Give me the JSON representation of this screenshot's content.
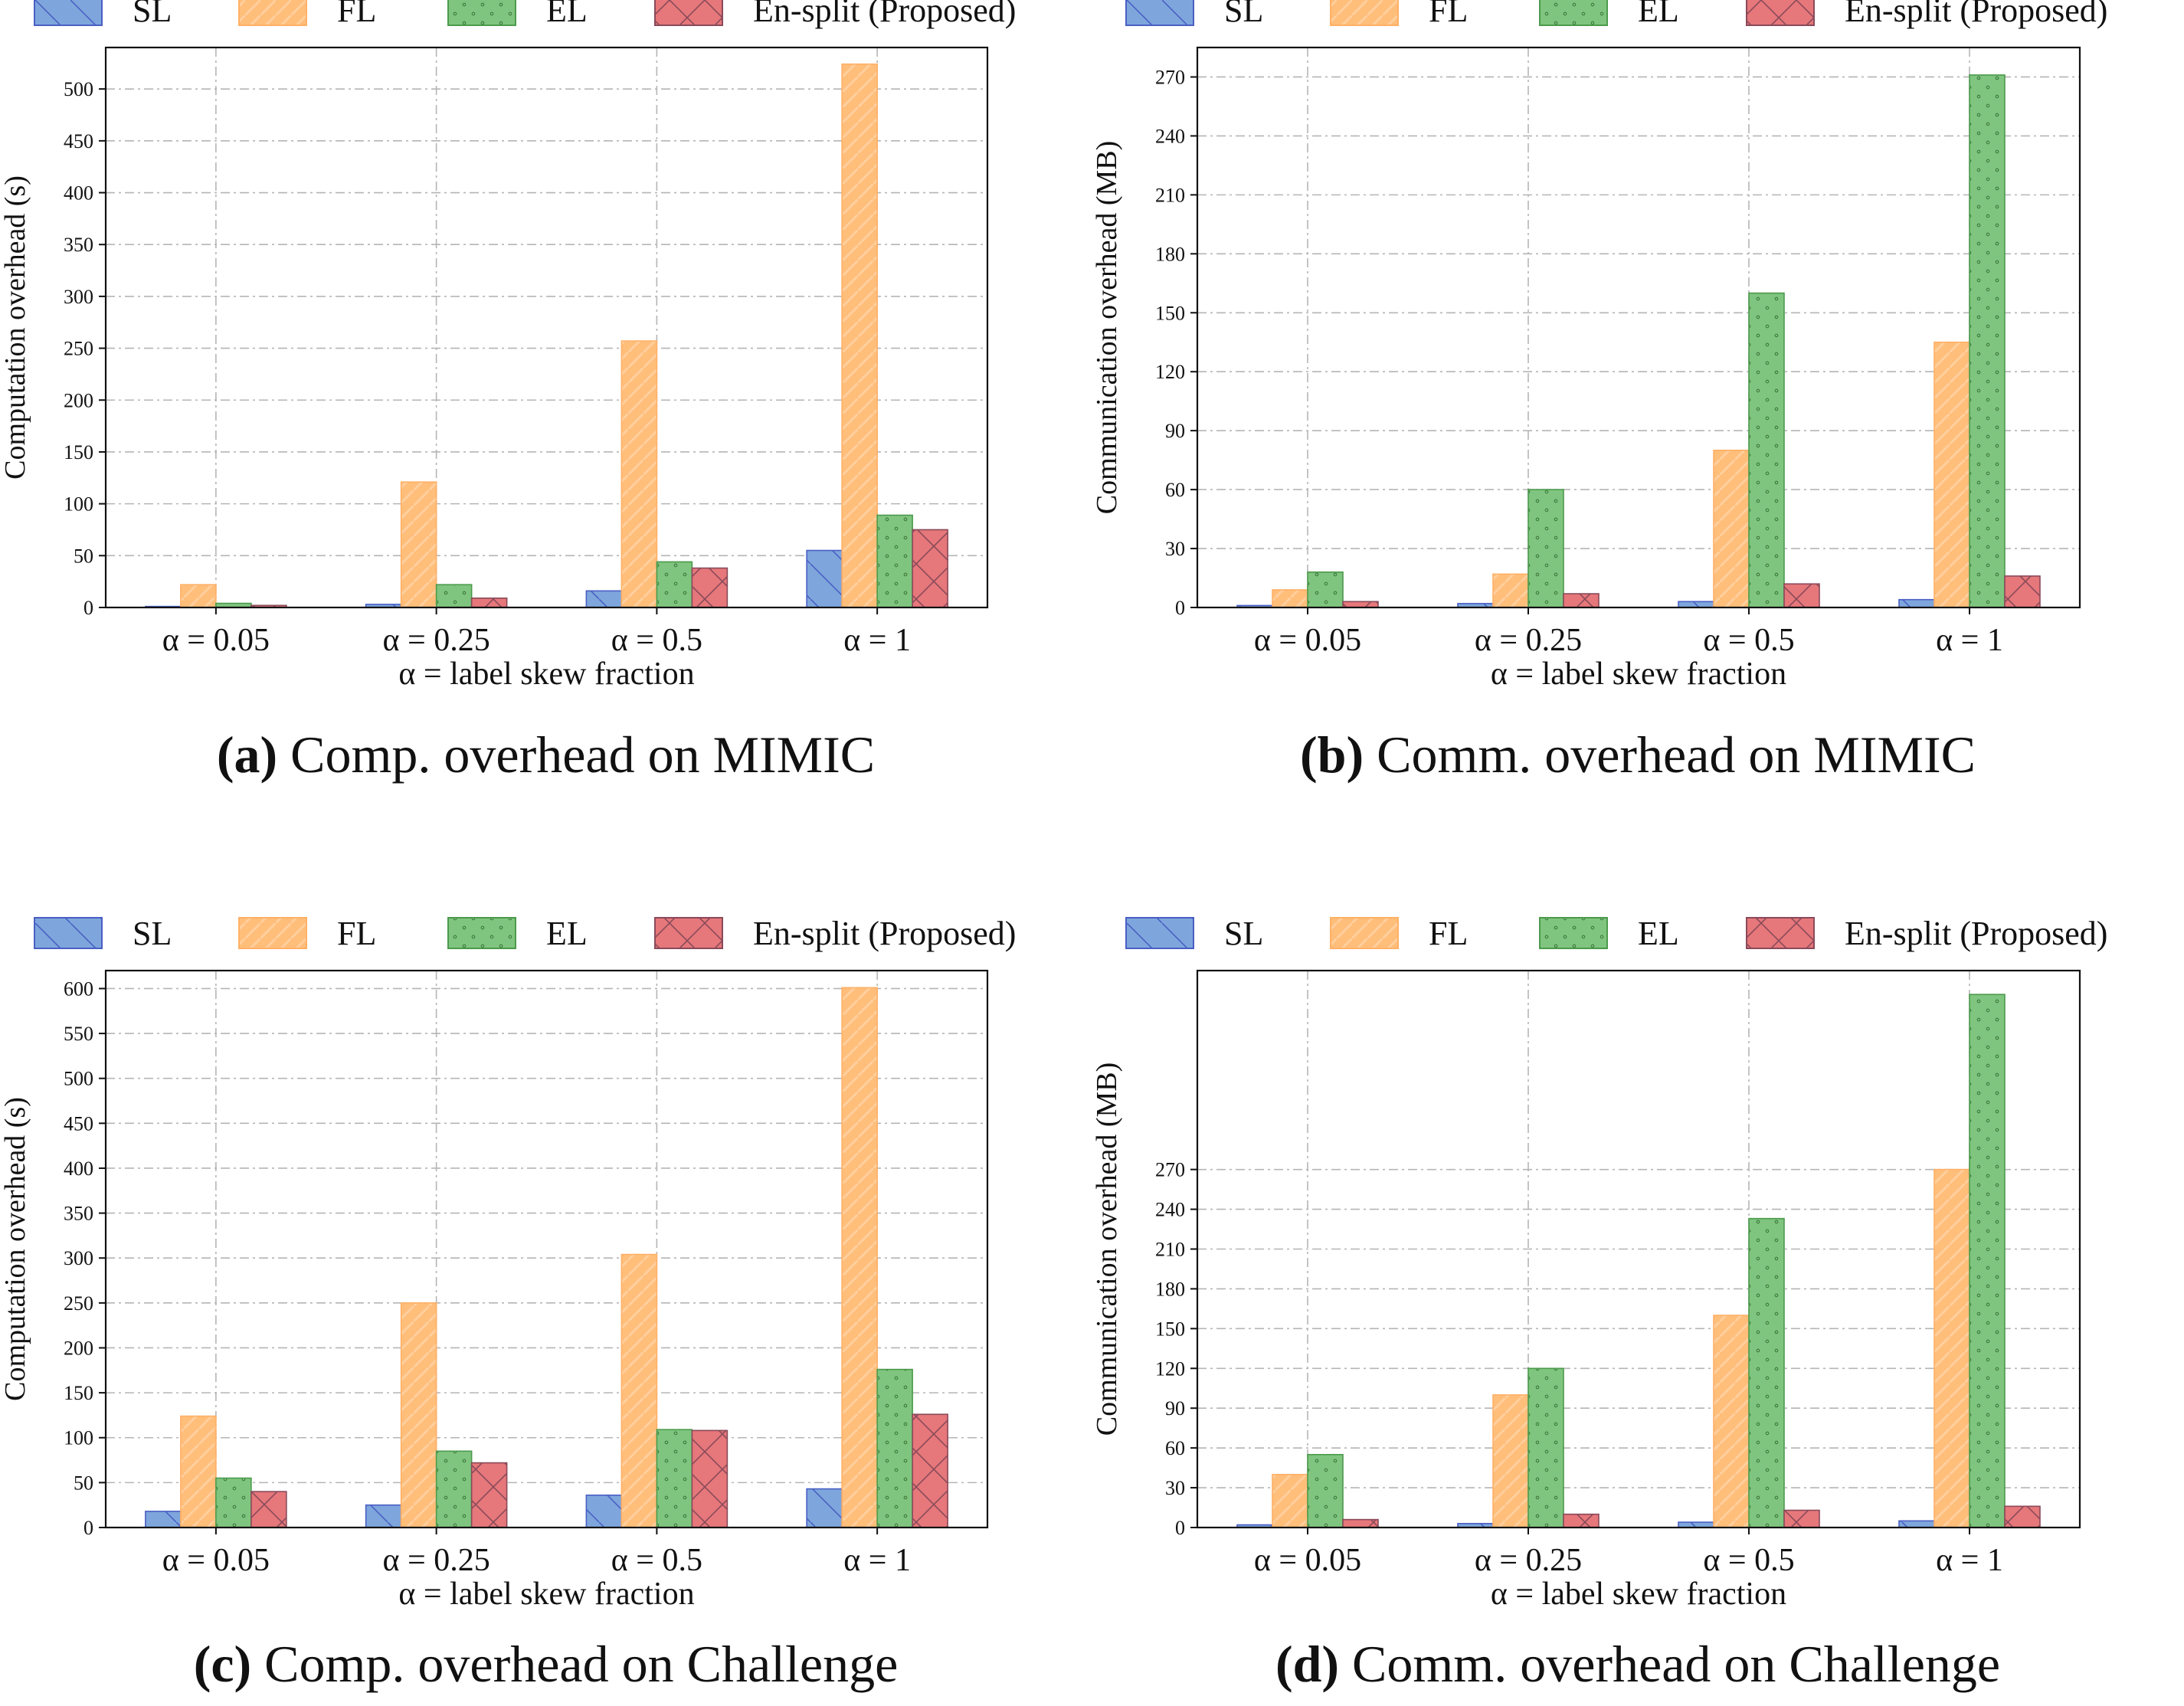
{
  "legend": [
    "SL",
    "FL",
    "EL",
    "En-split (Proposed)"
  ],
  "colors": {
    "SL": "#7ea6dc",
    "SL_edge": "#4a5fc4",
    "FL": "#ffbe7a",
    "FL_edge": "#ffb066",
    "EL": "#7fc57f",
    "EL_edge": "#4c9a4c",
    "EnSplit": "#e6777a",
    "EnSplit_edge": "#8a4a5a",
    "grid": "#b5b5b5"
  },
  "chart_data": [
    {
      "id": "a",
      "type": "bar",
      "categories": [
        "α = 0.05",
        "α = 0.25",
        "α = 0.5",
        "α = 1"
      ],
      "xlabel": "α = label skew fraction",
      "ylabel": "Computation overhead (s)",
      "ylim": [
        0,
        540
      ],
      "yticks": [
        0,
        50,
        100,
        150,
        200,
        250,
        300,
        350,
        400,
        450,
        500
      ],
      "series": [
        {
          "name": "SL",
          "values": [
            1,
            3,
            16,
            55
          ]
        },
        {
          "name": "FL",
          "values": [
            22,
            121,
            257,
            524
          ]
        },
        {
          "name": "EL",
          "values": [
            4,
            22,
            44,
            89
          ]
        },
        {
          "name": "En-split (Proposed)",
          "values": [
            2,
            9,
            38,
            75
          ]
        }
      ],
      "caption_label": "(a)",
      "caption_text": "Comp. overhead on MIMIC"
    },
    {
      "id": "b",
      "type": "bar",
      "categories": [
        "α = 0.05",
        "α = 0.25",
        "α = 0.5",
        "α = 1"
      ],
      "xlabel": "α = label skew fraction",
      "ylabel": "Communication overhead (MB)",
      "ylim": [
        0,
        285
      ],
      "yticks": [
        0,
        30,
        60,
        90,
        120,
        150,
        180,
        210,
        240,
        270
      ],
      "series": [
        {
          "name": "SL",
          "values": [
            1,
            2,
            3,
            4
          ]
        },
        {
          "name": "FL",
          "values": [
            9,
            17,
            80,
            135
          ]
        },
        {
          "name": "EL",
          "values": [
            18,
            60,
            160,
            271
          ]
        },
        {
          "name": "En-split (Proposed)",
          "values": [
            3,
            7,
            12,
            16
          ]
        }
      ],
      "caption_label": "(b)",
      "caption_text": "Comm. overhead on MIMIC"
    },
    {
      "id": "c",
      "type": "bar",
      "categories": [
        "α = 0.05",
        "α = 0.25",
        "α = 0.5",
        "α = 1"
      ],
      "xlabel": "α = label skew fraction",
      "ylabel": "Computation overhead (s)",
      "ylim": [
        0,
        620
      ],
      "yticks": [
        0,
        50,
        100,
        150,
        200,
        250,
        300,
        350,
        400,
        450,
        500,
        550,
        600
      ],
      "series": [
        {
          "name": "SL",
          "values": [
            18,
            25,
            36,
            43
          ]
        },
        {
          "name": "FL",
          "values": [
            124,
            250,
            304,
            601
          ]
        },
        {
          "name": "EL",
          "values": [
            55,
            85,
            109,
            176
          ]
        },
        {
          "name": "En-split (Proposed)",
          "values": [
            40,
            72,
            108,
            126
          ]
        }
      ],
      "caption_label": "(c)",
      "caption_text": "Comp. overhead on Challenge"
    },
    {
      "id": "d",
      "type": "bar",
      "categories": [
        "α = 0.05",
        "α = 0.25",
        "α = 0.5",
        "α = 1"
      ],
      "xlabel": "α = label skew fraction",
      "ylabel": "Communication overhead (MB)",
      "ylim": [
        0,
        420
      ],
      "yticks": [
        0,
        30,
        60,
        90,
        120,
        150,
        180,
        210,
        240,
        270
      ],
      "series": [
        {
          "name": "SL",
          "values": [
            2,
            3,
            4,
            5
          ]
        },
        {
          "name": "FL",
          "values": [
            40,
            100,
            160,
            270
          ]
        },
        {
          "name": "EL",
          "values": [
            55,
            120,
            233,
            402
          ]
        },
        {
          "name": "En-split (Proposed)",
          "values": [
            6,
            10,
            13,
            16
          ]
        }
      ],
      "caption_label": "(d)",
      "caption_text": "Comm. overhead on Challenge"
    }
  ]
}
